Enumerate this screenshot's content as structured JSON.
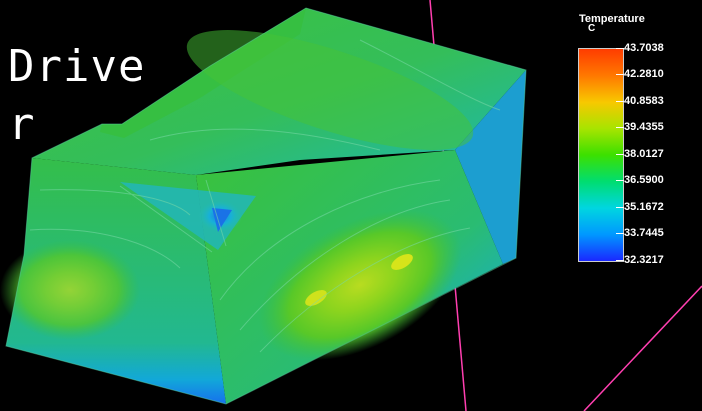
{
  "view": {
    "title_text": "Driver",
    "colors": {
      "background": "#000000",
      "axis_line": "#ff3fb0"
    }
  },
  "legend": {
    "title": "Temperature",
    "unit": "C",
    "levels": [
      "43.7038",
      "42.2810",
      "40.8583",
      "39.4355",
      "38.0127",
      "36.5900",
      "35.1672",
      "33.7445",
      "32.3217"
    ],
    "colormap": [
      "#ff3c00",
      "#ff7800",
      "#f8c800",
      "#a8e400",
      "#3ce000",
      "#00dd70",
      "#00d6e0",
      "#0098ff",
      "#1a28ff"
    ]
  }
}
